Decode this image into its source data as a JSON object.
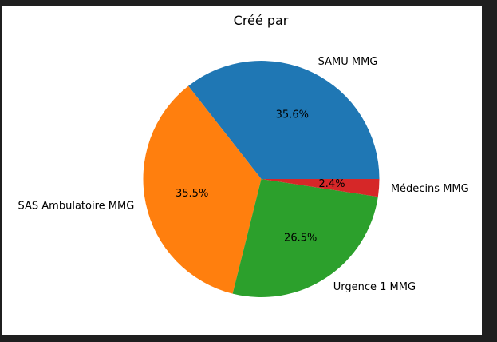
{
  "chart_data": {
    "type": "pie",
    "title": "Créé par",
    "slices": [
      {
        "label": "SAMU MMG",
        "value": 35.6,
        "pct_label": "35.6%",
        "color": "#1f77b4"
      },
      {
        "label": "SAS Ambulatoire MMG",
        "value": 35.5,
        "pct_label": "35.5%",
        "color": "#ff7f0e"
      },
      {
        "label": "Urgence 1 MMG",
        "value": 26.5,
        "pct_label": "26.5%",
        "color": "#2ca02c"
      },
      {
        "label": "Médecins MMG",
        "value": 2.4,
        "pct_label": "2.4%",
        "color": "#d62728"
      }
    ]
  }
}
